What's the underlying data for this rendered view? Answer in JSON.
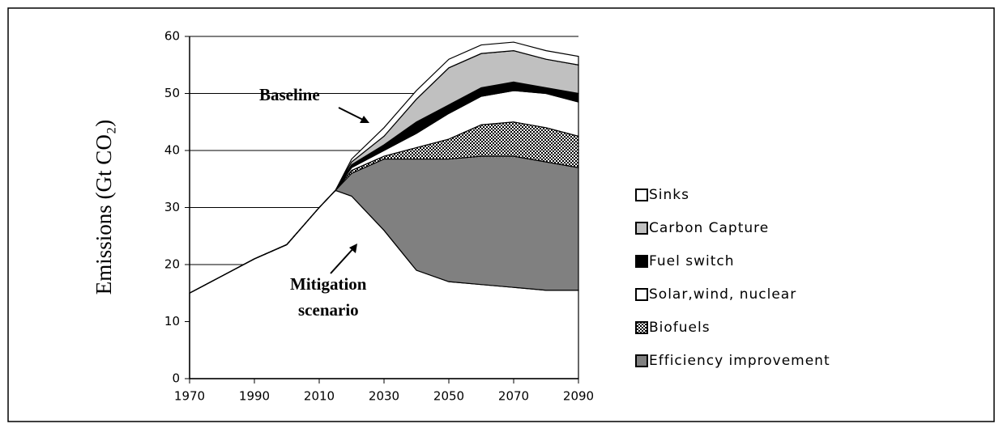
{
  "chart_data": {
    "type": "stacked-area",
    "y_label": "Emissions (Gt CO₂)",
    "annotations": {
      "baseline": "Baseline",
      "mitigation": [
        "Mitigation",
        "scenario"
      ]
    },
    "x": [
      1970,
      1980,
      1990,
      2000,
      2010,
      2015,
      2020,
      2030,
      2040,
      2050,
      2060,
      2070,
      2080,
      2090
    ],
    "xlim": [
      1970,
      2090
    ],
    "xticks": [
      1970,
      1990,
      2010,
      2030,
      2050,
      2070,
      2090
    ],
    "ylim": [
      0,
      60
    ],
    "yticks": [
      0,
      10,
      20,
      30,
      40,
      50,
      60
    ],
    "grid": true,
    "series": [
      {
        "color": "#ffffff",
        "values": [
          15,
          18,
          21,
          23.5,
          30,
          33,
          32,
          26,
          19,
          17,
          16.5,
          16,
          15.5,
          15.5
        ]
      },
      {
        "name": "Efficiency improvement",
        "color": "#808080",
        "values": [
          0,
          0,
          0,
          0,
          0,
          0,
          4,
          12.5,
          19.5,
          21.5,
          22.5,
          23,
          22.5,
          21.5
        ]
      },
      {
        "name": "Biofuels",
        "color": "#303030",
        "pattern": "dots",
        "values": [
          0,
          0,
          0,
          0,
          0,
          0,
          0.5,
          0.5,
          2,
          3.5,
          5.5,
          6,
          6,
          5.5
        ]
      },
      {
        "name": "Solar,wind, nuclear",
        "color": "#ffffff",
        "values": [
          0,
          0,
          0,
          0,
          0,
          0,
          0.5,
          1,
          2.5,
          4.5,
          5,
          5.5,
          6,
          6
        ]
      },
      {
        "name": "Fuel switch",
        "color": "#000000",
        "values": [
          0,
          0,
          0,
          0,
          0,
          0,
          0.5,
          1,
          2,
          1.5,
          1.5,
          1.5,
          1,
          1.5
        ]
      },
      {
        "name": "Carbon Capture",
        "color": "#c0c0c0",
        "values": [
          0,
          0,
          0,
          0,
          0,
          0,
          0.5,
          1.5,
          4,
          6.5,
          6,
          5.5,
          5,
          5
        ]
      },
      {
        "name": "Sinks",
        "color": "#ffffff",
        "values": [
          0,
          0,
          0,
          0,
          0,
          0,
          0.5,
          1.5,
          1.5,
          1.5,
          1.5,
          1.5,
          1.5,
          1.5
        ]
      }
    ]
  }
}
